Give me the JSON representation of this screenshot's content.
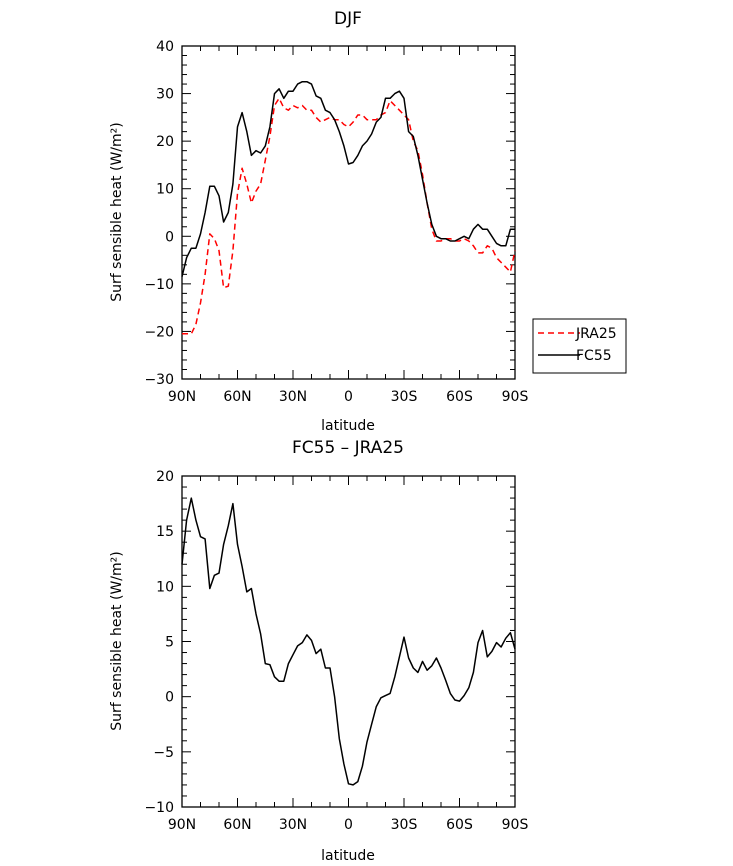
{
  "chart_data": [
    {
      "type": "line",
      "title": "DJF",
      "xlabel": "latitude",
      "ylabel": "Surf sensible heat (W/m²)",
      "xlim": [
        90,
        -90
      ],
      "ylim": [
        -30,
        40
      ],
      "x_ticks": [
        90,
        60,
        30,
        0,
        -30,
        -60,
        -90
      ],
      "x_tick_labels": [
        "90N",
        "60N",
        "30N",
        "0",
        "30S",
        "60S",
        "90S"
      ],
      "y_ticks": [
        -30,
        -20,
        -10,
        0,
        10,
        20,
        30,
        40
      ],
      "y_tick_labels": [
        "−30",
        "−20",
        "−10",
        "0",
        "10",
        "20",
        "30",
        "40"
      ],
      "legend": {
        "placement": "right",
        "entries": [
          "JRA25",
          "FC55"
        ]
      },
      "series": [
        {
          "name": "JRA25",
          "color": "#ff0000",
          "dash": "dashed",
          "x": [
            90,
            87.5,
            85,
            82.5,
            80,
            77.5,
            75,
            72.5,
            70,
            67.5,
            65,
            62.5,
            60,
            57.5,
            55,
            52.5,
            50,
            47.5,
            45,
            42.5,
            40,
            37.5,
            35,
            32.5,
            30,
            27.5,
            25,
            22.5,
            20,
            17.5,
            15,
            12.5,
            10,
            7.5,
            5,
            2.5,
            0,
            -2.5,
            -5,
            -7.5,
            -10,
            -12.5,
            -15,
            -17.5,
            -20,
            -22.5,
            -25,
            -27.5,
            -30,
            -32.5,
            -35,
            -37.5,
            -40,
            -42.5,
            -45,
            -47.5,
            -50,
            -52.5,
            -55,
            -57.5,
            -60,
            -62.5,
            -65,
            -67.5,
            -70,
            -72.5,
            -75,
            -77.5,
            -80,
            -82.5,
            -85,
            -87.5,
            -90
          ],
          "y": [
            -20.5,
            -20.5,
            -20.5,
            -18.5,
            -14,
            -8,
            0.5,
            -0.5,
            -3,
            -10.8,
            -10.5,
            -3,
            9,
            14.3,
            11,
            7,
            9.5,
            11,
            16,
            21,
            27.5,
            29,
            27,
            26.5,
            27.5,
            27,
            27.5,
            26.5,
            26.5,
            25,
            24,
            24.5,
            25,
            24.5,
            24.5,
            23.5,
            23,
            24,
            25.5,
            25.5,
            24.5,
            24.5,
            24.5,
            25.5,
            26,
            28.5,
            27.5,
            26.5,
            25.5,
            24.5,
            20,
            18,
            13,
            7,
            1.5,
            -1,
            -1,
            -0.5,
            -0.5,
            -1,
            -1,
            -0.5,
            -1,
            -2,
            -3.5,
            -3.5,
            -2,
            -2.5,
            -4.5,
            -5.5,
            -6.5,
            -7.5,
            -3
          ]
        },
        {
          "name": "FC55",
          "color": "#000000",
          "dash": "solid",
          "x": [
            90,
            87.5,
            85,
            82.5,
            80,
            77.5,
            75,
            72.5,
            70,
            67.5,
            65,
            62.5,
            60,
            57.5,
            55,
            52.5,
            50,
            47.5,
            45,
            42.5,
            40,
            37.5,
            35,
            32.5,
            30,
            27.5,
            25,
            22.5,
            20,
            17.5,
            15,
            12.5,
            10,
            7.5,
            5,
            2.5,
            0,
            -2.5,
            -5,
            -7.5,
            -10,
            -12.5,
            -15,
            -17.5,
            -20,
            -22.5,
            -25,
            -27.5,
            -30,
            -32.5,
            -35,
            -37.5,
            -40,
            -42.5,
            -45,
            -47.5,
            -50,
            -52.5,
            -55,
            -57.5,
            -60,
            -62.5,
            -65,
            -67.5,
            -70,
            -72.5,
            -75,
            -77.5,
            -80,
            -82.5,
            -85,
            -87.5,
            -90
          ],
          "y": [
            -8.5,
            -4.5,
            -2.5,
            -2.5,
            0.5,
            5,
            10.5,
            10.5,
            8.5,
            3,
            5,
            11,
            23,
            26,
            22,
            17,
            18,
            17.5,
            19,
            23,
            30,
            31,
            29,
            30.5,
            30.5,
            32,
            32.5,
            32.5,
            32,
            29.5,
            29,
            26.5,
            26,
            24.5,
            22,
            19,
            15.2,
            15.5,
            17,
            19,
            20,
            21.5,
            24,
            25,
            29,
            29,
            30,
            30.5,
            29,
            22,
            21,
            17,
            12,
            7,
            2.5,
            0,
            -0.5,
            -0.5,
            -1,
            -1,
            -0.5,
            0,
            -0.5,
            1.5,
            2.5,
            1.5,
            1.5,
            0,
            -1.5,
            -2,
            -2,
            1.5,
            1.5
          ]
        }
      ]
    },
    {
      "type": "line",
      "title": "FC55 – JRA25",
      "xlabel": "latitude",
      "ylabel": "Surf sensible heat (W/m²)",
      "xlim": [
        90,
        -90
      ],
      "ylim": [
        -10,
        20
      ],
      "x_ticks": [
        90,
        60,
        30,
        0,
        -30,
        -60,
        -90
      ],
      "x_tick_labels": [
        "90N",
        "60N",
        "30N",
        "0",
        "30S",
        "60S",
        "90S"
      ],
      "y_ticks": [
        -10,
        -5,
        0,
        5,
        10,
        15,
        20
      ],
      "y_tick_labels": [
        "−10",
        "−5",
        "0",
        "5",
        "10",
        "15",
        "20"
      ],
      "series": [
        {
          "color": "#000000",
          "dash": "solid",
          "x": [
            90,
            87.5,
            85,
            82.5,
            80,
            77.5,
            75,
            72.5,
            70,
            67.5,
            65,
            62.5,
            60,
            57.5,
            55,
            52.5,
            50,
            47.5,
            45,
            42.5,
            40,
            37.5,
            35,
            32.5,
            30,
            27.5,
            25,
            22.5,
            20,
            17.5,
            15,
            12.5,
            10,
            7.5,
            5,
            2.5,
            0,
            -2.5,
            -5,
            -7.5,
            -10,
            -12.5,
            -15,
            -17.5,
            -20,
            -22.5,
            -25,
            -27.5,
            -30,
            -32.5,
            -35,
            -37.5,
            -40,
            -42.5,
            -45,
            -47.5,
            -50,
            -52.5,
            -55,
            -57.5,
            -60,
            -62.5,
            -65,
            -67.5,
            -70,
            -72.5,
            -75,
            -77.5,
            -80,
            -82.5,
            -85,
            -87.5,
            -90
          ],
          "y": [
            12,
            16,
            18,
            16,
            14.5,
            14.3,
            9.8,
            11,
            11.2,
            13.8,
            15.5,
            17.5,
            13.8,
            11.8,
            9.5,
            9.8,
            7.5,
            5.7,
            3,
            2.9,
            1.8,
            1.4,
            1.4,
            3,
            3.8,
            4.6,
            4.9,
            5.6,
            5.1,
            3.9,
            4.3,
            2.6,
            2.6,
            0,
            -3.8,
            -6.1,
            -7.9,
            -8,
            -7.7,
            -6.3,
            -4.1,
            -2.5,
            -0.9,
            -0.1,
            0.1,
            0.3,
            1.8,
            3.6,
            5.4,
            3.5,
            2.6,
            2.2,
            3.2,
            2.4,
            2.8,
            3.5,
            2.6,
            1.5,
            0.3,
            -0.3,
            -0.4,
            0.1,
            0.8,
            2.2,
            4.9,
            6,
            3.6,
            4.1,
            4.9,
            4.5,
            5.3,
            5.8,
            4.3
          ]
        }
      ]
    }
  ]
}
